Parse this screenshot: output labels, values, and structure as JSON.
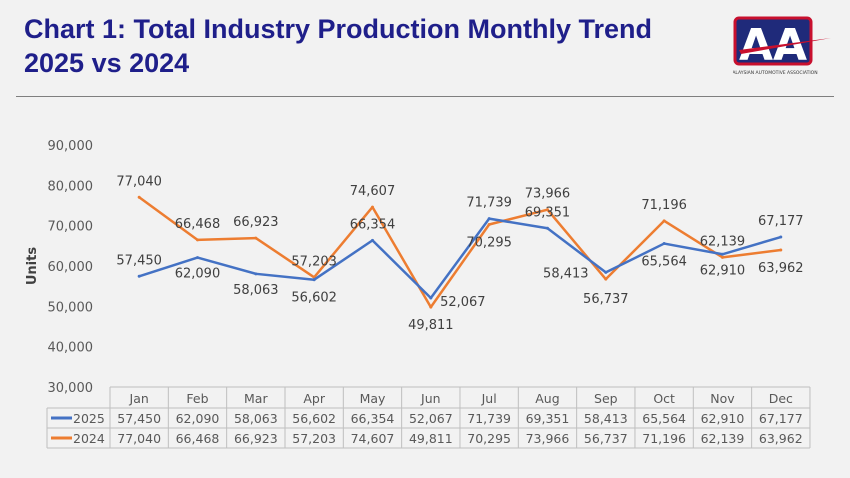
{
  "title_line1": "Chart 1: Total Industry Production Monthly Trend",
  "title_line2": "2025 vs 2024",
  "logo": {
    "text": "MALAYSIAN AUTOMOTIVE ASSOCIATION",
    "letters": "AA"
  },
  "chart_data": {
    "type": "line",
    "title": "",
    "xlabel": "",
    "ylabel": "Units",
    "ylim": [
      30000,
      90000
    ],
    "yticks": [
      "30,000",
      "40,000",
      "50,000",
      "60,000",
      "70,000",
      "80,000",
      "90,000"
    ],
    "categories": [
      "Jan",
      "Feb",
      "Mar",
      "Apr",
      "May",
      "Jun",
      "Jul",
      "Aug",
      "Sep",
      "Oct",
      "Nov",
      "Dec"
    ],
    "grid": false,
    "legend": "data-table",
    "series": [
      {
        "name": "2025",
        "color": "#4472c4",
        "values": [
          57450,
          62090,
          58063,
          56602,
          66354,
          52067,
          71739,
          69351,
          58413,
          65564,
          62910,
          67177
        ]
      },
      {
        "name": "2024",
        "color": "#ed7d31",
        "values": [
          77040,
          66468,
          66923,
          57203,
          74607,
          49811,
          70295,
          73966,
          56737,
          71196,
          62139,
          63962
        ]
      }
    ]
  }
}
